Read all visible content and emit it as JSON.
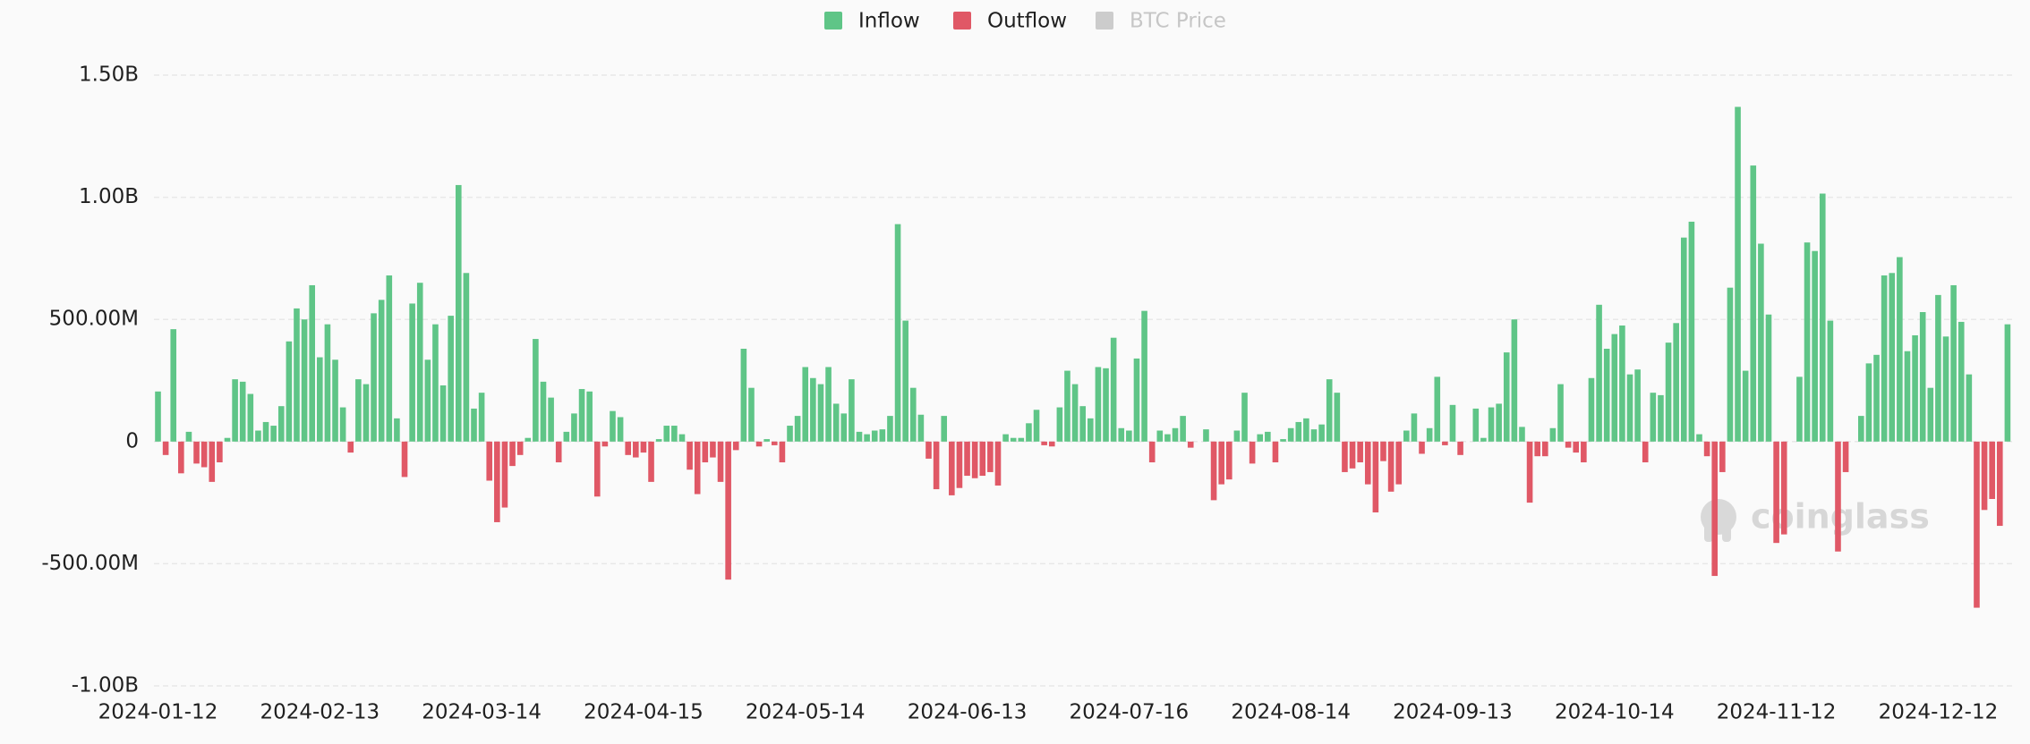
{
  "chart_data": {
    "type": "bar",
    "legend": [
      {
        "name": "Inflow",
        "color": "#5fc587"
      },
      {
        "name": "Outflow",
        "color": "#e05866"
      },
      {
        "name": "BTC Price",
        "color": "#cccccc",
        "hidden": true
      }
    ],
    "watermark": "coinglass",
    "categories": [
      "2024-01-12",
      null,
      null,
      null,
      null,
      null,
      null,
      null,
      null,
      null,
      null,
      null,
      null,
      null,
      null,
      null,
      null,
      null,
      null,
      null,
      null,
      "2024-02-13",
      null,
      null,
      null,
      null,
      null,
      null,
      null,
      null,
      null,
      null,
      null,
      null,
      null,
      null,
      null,
      null,
      null,
      null,
      null,
      null,
      "2024-03-14",
      null,
      null,
      null,
      null,
      null,
      null,
      null,
      null,
      null,
      null,
      null,
      null,
      null,
      null,
      null,
      null,
      null,
      null,
      null,
      null,
      "2024-04-15",
      null,
      null,
      null,
      null,
      null,
      null,
      null,
      null,
      null,
      null,
      null,
      null,
      null,
      null,
      null,
      null,
      null,
      null,
      null,
      null,
      "2024-05-14",
      null,
      null,
      null,
      null,
      null,
      null,
      null,
      null,
      null,
      null,
      null,
      null,
      null,
      null,
      null,
      null,
      null,
      null,
      null,
      null,
      "2024-06-13",
      null,
      null,
      null,
      null,
      null,
      null,
      null,
      null,
      null,
      null,
      null,
      null,
      null,
      null,
      null,
      null,
      null,
      null,
      null,
      null,
      "2024-07-16",
      null,
      null,
      null,
      null,
      null,
      null,
      null,
      null,
      null,
      null,
      null,
      null,
      null,
      null,
      null,
      null,
      null,
      null,
      null,
      null,
      "2024-08-14",
      null,
      null,
      null,
      null,
      null,
      null,
      null,
      null,
      null,
      null,
      null,
      null,
      null,
      null,
      null,
      null,
      null,
      null,
      null,
      null,
      "2024-09-13",
      null,
      null,
      null,
      null,
      null,
      null,
      null,
      null,
      null,
      null,
      null,
      null,
      null,
      null,
      null,
      null,
      null,
      null,
      null,
      null,
      "2024-10-14",
      null,
      null,
      null,
      null,
      null,
      null,
      null,
      null,
      null,
      null,
      null,
      null,
      null,
      null,
      null,
      null,
      null,
      null,
      null,
      null,
      "2024-11-12",
      null,
      null,
      null,
      null,
      null,
      null,
      null,
      null,
      null,
      null,
      null,
      null,
      null,
      null,
      null,
      null,
      null,
      null,
      null,
      null,
      "2024-12-12",
      null,
      null,
      null,
      null,
      null,
      null,
      null,
      null,
      null
    ],
    "values": [
      205000000,
      -55000000,
      460000000,
      -130000000,
      40000000,
      -90000000,
      -105000000,
      -165000000,
      -85000000,
      15000000,
      255000000,
      245000000,
      195000000,
      45000000,
      80000000,
      65000000,
      145000000,
      410000000,
      545000000,
      500000000,
      640000000,
      345000000,
      480000000,
      335000000,
      140000000,
      -45000000,
      255000000,
      235000000,
      525000000,
      580000000,
      680000000,
      95000000,
      -145000000,
      565000000,
      650000000,
      335000000,
      480000000,
      230000000,
      515000000,
      1050000000,
      690000000,
      135000000,
      200000000,
      -160000000,
      -330000000,
      -270000000,
      -100000000,
      -55000000,
      15000000,
      420000000,
      245000000,
      180000000,
      -85000000,
      40000000,
      115000000,
      215000000,
      205000000,
      -225000000,
      -20000000,
      125000000,
      100000000,
      -55000000,
      -65000000,
      -45000000,
      -165000000,
      10000000,
      65000000,
      65000000,
      30000000,
      -115000000,
      -215000000,
      -85000000,
      -65000000,
      -165000000,
      -565000000,
      -35000000,
      380000000,
      220000000,
      -20000000,
      10000000,
      -15000000,
      -85000000,
      65000000,
      105000000,
      305000000,
      260000000,
      235000000,
      305000000,
      155000000,
      115000000,
      255000000,
      40000000,
      30000000,
      45000000,
      50000000,
      105000000,
      890000000,
      495000000,
      220000000,
      110000000,
      -70000000,
      -195000000,
      105000000,
      -220000000,
      -190000000,
      -140000000,
      -150000000,
      -140000000,
      -125000000,
      -180000000,
      30000000,
      15000000,
      15000000,
      75000000,
      130000000,
      -15000000,
      -20000000,
      140000000,
      290000000,
      235000000,
      145000000,
      95000000,
      305000000,
      300000000,
      425000000,
      55000000,
      45000000,
      340000000,
      535000000,
      -85000000,
      45000000,
      30000000,
      55000000,
      105000000,
      -25000000,
      0,
      50000000,
      -240000000,
      -175000000,
      -155000000,
      45000000,
      200000000,
      -90000000,
      30000000,
      40000000,
      -85000000,
      10000000,
      55000000,
      80000000,
      95000000,
      50000000,
      70000000,
      255000000,
      200000000,
      -125000000,
      -110000000,
      -85000000,
      -175000000,
      -290000000,
      -80000000,
      -205000000,
      -175000000,
      45000000,
      115000000,
      -50000000,
      55000000,
      265000000,
      -15000000,
      150000000,
      -55000000,
      0,
      135000000,
      15000000,
      140000000,
      155000000,
      365000000,
      500000000,
      60000000,
      -250000000,
      -60000000,
      -60000000,
      55000000,
      235000000,
      -25000000,
      -45000000,
      -85000000,
      260000000,
      560000000,
      380000000,
      440000000,
      475000000,
      275000000,
      295000000,
      -85000000,
      200000000,
      190000000,
      405000000,
      485000000,
      835000000,
      900000000,
      30000000,
      -60000000,
      -550000000,
      -125000000,
      630000000,
      1370000000,
      290000000,
      1130000000,
      810000000,
      520000000,
      -415000000,
      -380000000,
      0,
      265000000,
      815000000,
      780000000,
      1015000000,
      495000000,
      -450000000,
      -125000000,
      0,
      105000000,
      320000000,
      355000000,
      680000000,
      690000000,
      755000000,
      370000000,
      435000000,
      530000000,
      220000000,
      600000000,
      430000000,
      640000000,
      490000000,
      275000000,
      -680000000,
      -280000000,
      -235000000,
      -345000000,
      480000000
    ],
    "ylim": [
      -1000000000,
      1500000000
    ],
    "yticks": [
      {
        "value": -1000000000,
        "label": "-1.00B"
      },
      {
        "value": -500000000,
        "label": "-500.00M"
      },
      0,
      {
        "value": 500000000,
        "label": "500.00M"
      },
      {
        "value": 1000000000,
        "label": "1.00B"
      },
      {
        "value": 1500000000,
        "label": "1.50B"
      }
    ],
    "grid": true
  }
}
